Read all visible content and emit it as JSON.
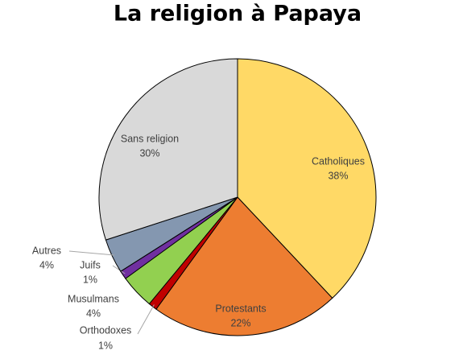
{
  "chart_data": {
    "type": "pie",
    "title": "La religion à Papaya",
    "categories": [
      "Catholiques",
      "Protestants",
      "Orthodoxes",
      "Musulmans",
      "Juifs",
      "Autres",
      "Sans religion"
    ],
    "values": [
      38,
      22,
      1,
      4,
      1,
      4,
      30
    ],
    "value_labels": [
      "38%",
      "22%",
      "1%",
      "4%",
      "1%",
      "4%",
      "30%"
    ],
    "colors": [
      "#ffd966",
      "#ed7d31",
      "#c00000",
      "#92d050",
      "#7030a0",
      "#8497b0",
      "#d9d9d9"
    ]
  }
}
